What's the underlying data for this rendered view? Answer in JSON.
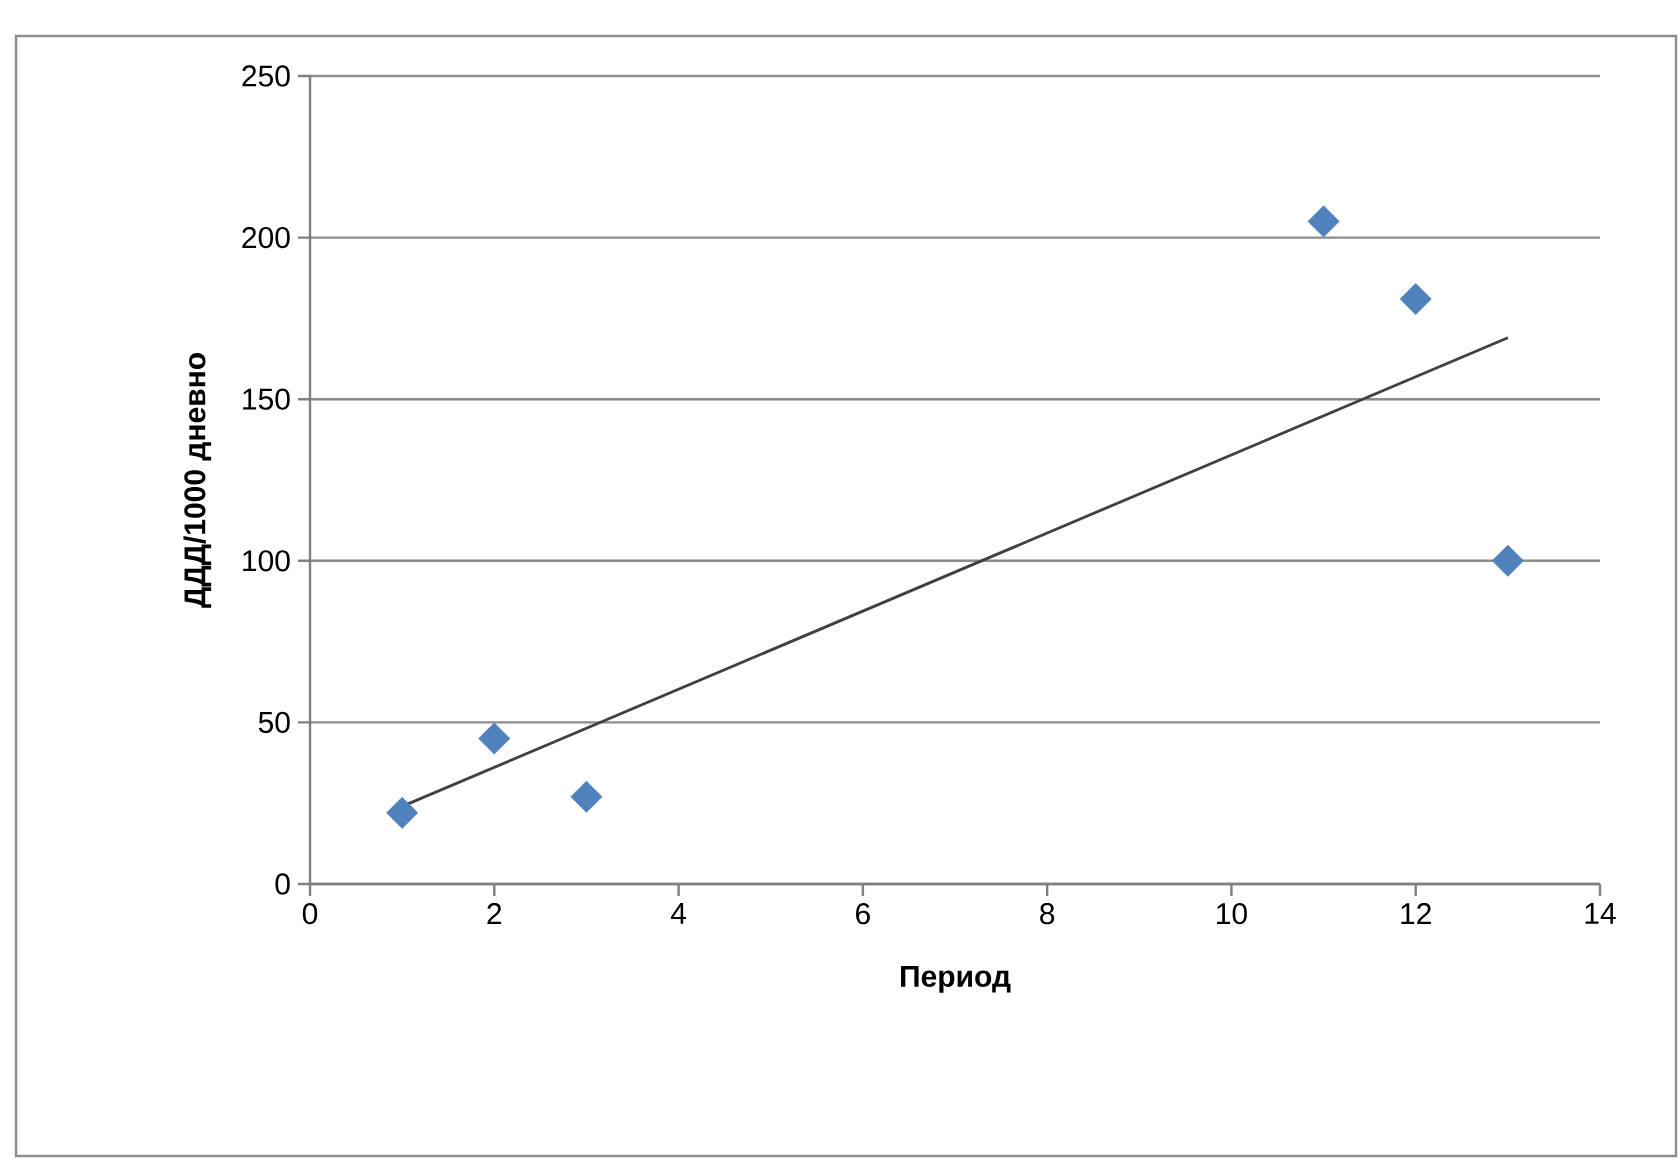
{
  "chart_data": {
    "type": "scatter",
    "xlabel": "Период",
    "ylabel": "ДДД/1000 дневно",
    "xlim": [
      0,
      14
    ],
    "xticks": [
      0,
      2,
      4,
      6,
      8,
      10,
      12,
      14
    ],
    "ylim": [
      0,
      250
    ],
    "yticks": [
      0,
      50,
      100,
      150,
      200,
      250
    ],
    "grid": "y",
    "marker": "diamond",
    "series": [
      {
        "color": "#4f81bd",
        "x": [
          1,
          2,
          3,
          11,
          12,
          13
        ],
        "values": [
          22,
          45,
          27,
          205,
          181,
          100
        ]
      },
      {
        "type": "line",
        "color": "#404040",
        "marker": "none",
        "line_style": "solid",
        "x": [
          1,
          13
        ],
        "values": [
          24,
          169
        ]
      }
    ]
  }
}
